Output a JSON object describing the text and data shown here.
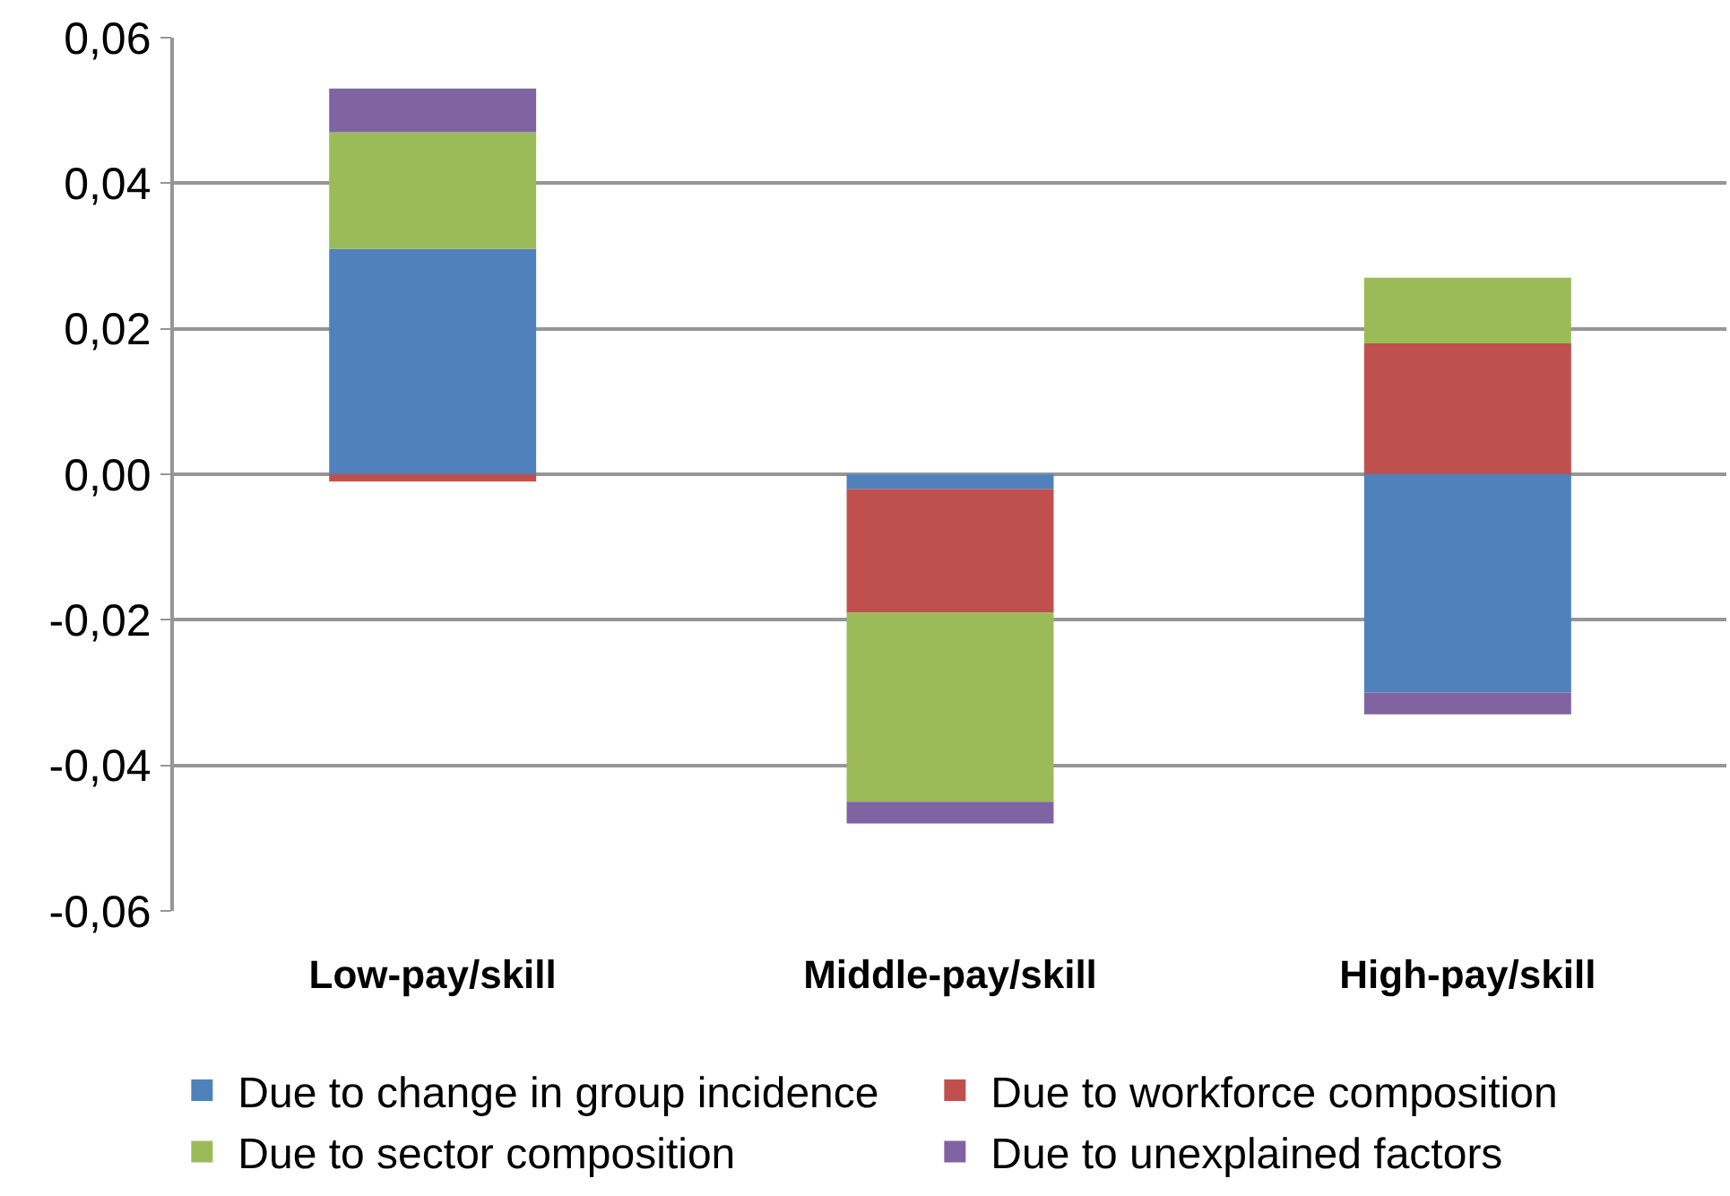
{
  "chart_data": {
    "type": "bar",
    "stacked": true,
    "categories": [
      "Low-pay/skill",
      "Middle-pay/skill",
      "High-pay/skill"
    ],
    "series": [
      {
        "name": "Due to change in group incidence",
        "color": "#4f81bd",
        "values": [
          0.031,
          -0.002,
          -0.03
        ]
      },
      {
        "name": "Due to workforce composition",
        "color": "#c0504d",
        "values": [
          -0.001,
          -0.017,
          0.018
        ]
      },
      {
        "name": "Due to sector composition",
        "color": "#9bbb59",
        "values": [
          0.016,
          -0.026,
          0.009
        ]
      },
      {
        "name": "Due to unexplained factors",
        "color": "#8064a2",
        "values": [
          0.006,
          -0.003,
          -0.003
        ]
      }
    ],
    "ylim": [
      -0.06,
      0.06
    ],
    "yticks": [
      {
        "value": -0.06,
        "label": "-0,06"
      },
      {
        "value": -0.04,
        "label": "-0,04"
      },
      {
        "value": -0.02,
        "label": "-0,02"
      },
      {
        "value": 0,
        "label": "0,00"
      },
      {
        "value": 0.02,
        "label": "0,02"
      },
      {
        "value": 0.04,
        "label": "0,04"
      },
      {
        "value": 0.06,
        "label": "0,06"
      }
    ],
    "grid": "y",
    "legend": "bottom"
  }
}
